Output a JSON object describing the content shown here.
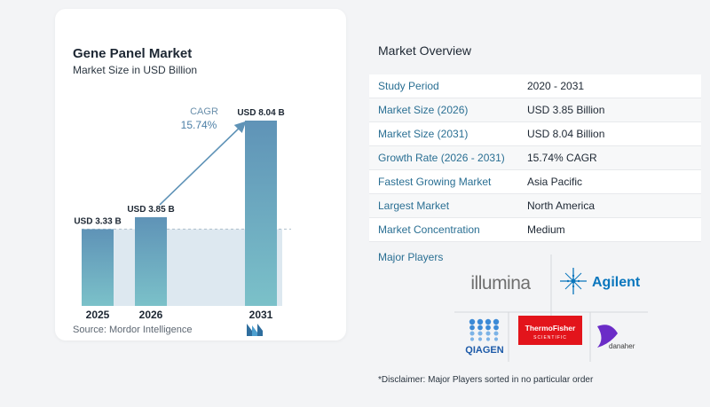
{
  "chart": {
    "title": "Gene Panel Market",
    "subtitle": "Market Size in USD Billion",
    "source": "Source:  Mordor Intelligence",
    "cagr_label": "CAGR",
    "cagr_value": "15.74%"
  },
  "chart_data": {
    "type": "bar",
    "categories": [
      "2025",
      "2026",
      "2031"
    ],
    "values": [
      3.33,
      3.85,
      8.04
    ],
    "data_labels": [
      "USD 3.33 B",
      "USD 3.85 B",
      "USD 8.04 B"
    ],
    "title": "Gene Panel Market",
    "subtitle": "Market Size in USD Billion",
    "xlabel": "",
    "ylabel": "",
    "ylim": [
      0,
      8.04
    ],
    "grid": false,
    "annotation": "CAGR 15.74%",
    "colors": {
      "bar_top": "#5f93b7",
      "bar_bottom": "#7bc1c9",
      "arrow": "#5f93b7",
      "reference_fill": "#dde8f0"
    }
  },
  "overview": {
    "title": "Market Overview",
    "rows": [
      {
        "label": "Study Period",
        "value": "2020 - 2031"
      },
      {
        "label": "Market Size (2026)",
        "value": "USD 3.85 Billion"
      },
      {
        "label": "Market Size (2031)",
        "value": "USD 8.04 Billion"
      },
      {
        "label": "Growth Rate (2026 - 2031)",
        "value": "15.74% CAGR"
      },
      {
        "label": "Fastest Growing Market",
        "value": "Asia Pacific"
      },
      {
        "label": "Largest Market",
        "value": "North America"
      },
      {
        "label": "Market Concentration",
        "value": "Medium"
      }
    ]
  },
  "players": {
    "label": "Major Players",
    "logos": [
      "illumina",
      "Agilent",
      "QIAGEN",
      "ThermoFisher SCIENTIFIC",
      "danaher"
    ]
  },
  "disclaimer": "*Disclaimer: Major Players sorted in no particular order",
  "colors": {
    "accent_text": "#2a6f93",
    "thermo_red": "#e3141b",
    "qiagen_blue": "#1d5aa8",
    "agilent_blue": "#0a76bd",
    "danaher_purple": "#6b2cc7"
  }
}
